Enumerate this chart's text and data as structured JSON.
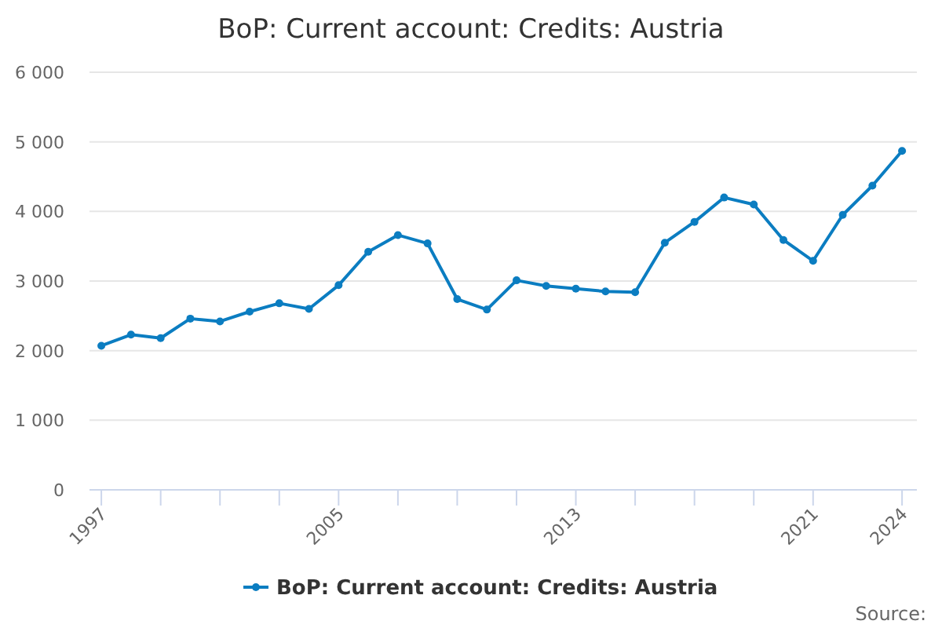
{
  "chart_data": {
    "type": "line",
    "title": "BoP: Current account: Credits: Austria",
    "x": [
      1997,
      1998,
      1999,
      2000,
      2001,
      2002,
      2003,
      2004,
      2005,
      2006,
      2007,
      2008,
      2009,
      2010,
      2011,
      2012,
      2013,
      2014,
      2015,
      2016,
      2017,
      2018,
      2019,
      2020,
      2021,
      2022,
      2023,
      2024
    ],
    "series": [
      {
        "name": "BoP: Current account: Credits: Austria",
        "color": "#0b7dc1",
        "values": [
          2070,
          2230,
          2180,
          2460,
          2420,
          2560,
          2680,
          2600,
          2940,
          3420,
          3660,
          3540,
          2740,
          2590,
          3010,
          2930,
          2890,
          2850,
          2840,
          3550,
          3850,
          4200,
          4100,
          3590,
          3290,
          3950,
          4370,
          4870
        ]
      }
    ],
    "xlim": [
      1996.6,
      2024.5
    ],
    "xticks": [
      1997,
      {
        "value": 1999,
        "label": null
      },
      {
        "value": 2001,
        "label": null
      },
      {
        "value": 2003,
        "label": null
      },
      2005,
      {
        "value": 2007,
        "label": null
      },
      {
        "value": 2009,
        "label": null
      },
      {
        "value": 2011,
        "label": null
      },
      2013,
      {
        "value": 2015,
        "label": null
      },
      {
        "value": 2017,
        "label": null
      },
      {
        "value": 2019,
        "label": null
      },
      2021,
      2024
    ],
    "ylim": [
      0,
      6000
    ],
    "yticks": [
      0,
      {
        "value": 1000,
        "label": "1 000"
      },
      {
        "value": 2000,
        "label": "2 000"
      },
      {
        "value": 3000,
        "label": "3 000"
      },
      {
        "value": 4000,
        "label": "4 000"
      },
      {
        "value": 5000,
        "label": "5 000"
      },
      {
        "value": 6000,
        "label": "6 000"
      }
    ],
    "grid": "y",
    "legend": "bottom",
    "marker": "circle",
    "line_style": "solid",
    "annotations": [
      "Source:"
    ]
  }
}
